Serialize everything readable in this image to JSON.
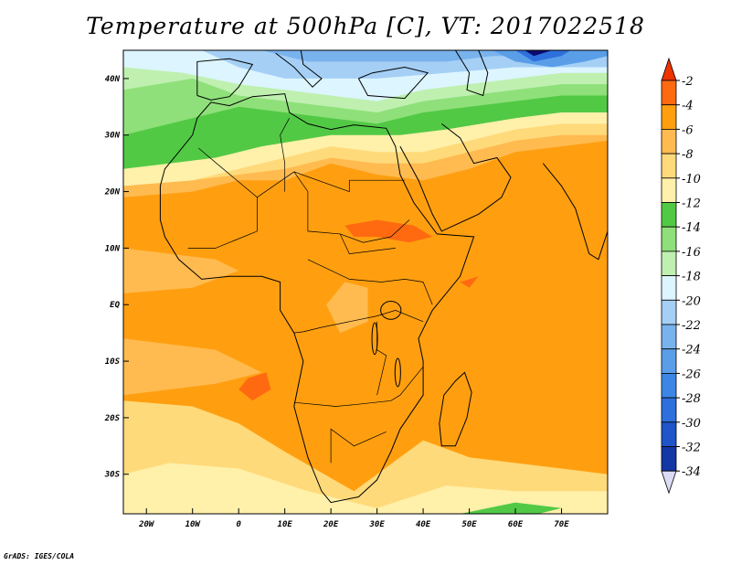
{
  "title": "Temperature at 500hPa [C], VT: 2017022518",
  "credit": "GrADS: IGES/COLA",
  "colors": {
    "bands": {
      "lt_-34": "#0a0a6e",
      "-34_-32": "#1437a6",
      "-32_-30": "#1f55c8",
      "-30_-28": "#2d6fdc",
      "-28_-26": "#3c87e6",
      "-26_-24": "#5a9ee8",
      "-24_-22": "#79b3ee",
      "-22_-20": "#a5cff5",
      "-20_-18": "#dcf5ff",
      "-18_-16": "#bff0b0",
      "-16_-14": "#8fe07a",
      "-14_-12": "#52c945",
      "-12_-10": "#fff0aa",
      "-10_-8": "#ffda7a",
      "-8_-6": "#ffbb50",
      "-6_-4": "#ff9f10",
      "-4_-2": "#ff6a10",
      "gt_-2": "#ee3300"
    }
  },
  "chart_data": {
    "type": "heatmap",
    "variable": "Temperature at 500hPa",
    "units": "C",
    "valid_time": "2017022518",
    "lon_range": [
      -25,
      80
    ],
    "lat_range": [
      -37,
      45
    ],
    "x_ticks": [
      "20W",
      "10W",
      "0",
      "10E",
      "20E",
      "30E",
      "40E",
      "50E",
      "60E",
      "70E"
    ],
    "x_tick_values": [
      -20,
      -10,
      0,
      10,
      20,
      30,
      40,
      50,
      60,
      70
    ],
    "y_ticks": [
      "40N",
      "30N",
      "20N",
      "10N",
      "EQ",
      "10S",
      "20S",
      "30S"
    ],
    "y_tick_values": [
      40,
      30,
      20,
      10,
      0,
      -10,
      -20,
      -30
    ],
    "colorbar_levels": [
      "-2",
      "-4",
      "-6",
      "-8",
      "-10",
      "-12",
      "-14",
      "-16",
      "-18",
      "-20",
      "-22",
      "-24",
      "-26",
      "-28",
      "-30",
      "-32",
      "-34"
    ],
    "colorbar_colors": [
      "#ee3300",
      "#ff6a10",
      "#ff9f10",
      "#ffbb50",
      "#ffda7a",
      "#fff0aa",
      "#52c945",
      "#8fe07a",
      "#bff0b0",
      "#dcf5ff",
      "#a5cff5",
      "#79b3ee",
      "#5a9ee8",
      "#3c87e6",
      "#2d6fdc",
      "#1f55c8",
      "#1437a6",
      "#0a0a6e"
    ]
  }
}
